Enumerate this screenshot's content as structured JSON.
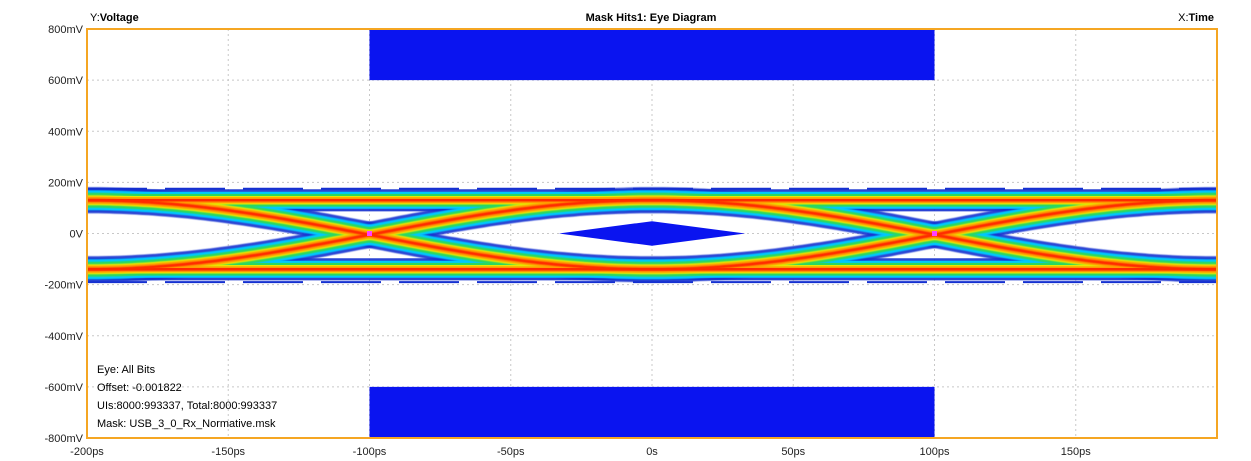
{
  "header": {
    "y_prefix": "Y:",
    "y_name": "Voltage",
    "title": "Mask Hits1: Eye Diagram",
    "x_prefix": "X:",
    "x_name": "Time"
  },
  "info": {
    "eye": "Eye: All Bits",
    "offset": "Offset: -0.001822",
    "uis": "UIs:8000:993337, Total:8000:993337",
    "mask": "Mask: USB_3_0_Rx_Normative.msk"
  },
  "colors": {
    "frame": "#f5a623",
    "grid": "#c8c8c8",
    "mask": "#0a14f0",
    "crossing_marker": "#ff40ff",
    "heat": [
      "#1530d0",
      "#00c8ff",
      "#2ad860",
      "#e8e800",
      "#ff9a00",
      "#ff2a00"
    ]
  },
  "chart_data": {
    "type": "heatmap",
    "title": "Mask Hits1: Eye Diagram",
    "xlabel": "Time",
    "ylabel": "Voltage",
    "x_unit": "ps",
    "y_unit": "mV",
    "xlim": [
      -200,
      200
    ],
    "ylim": [
      -800,
      800
    ],
    "grid": true,
    "x_ticks": [
      {
        "value": -200,
        "label": "-200ps"
      },
      {
        "value": -150,
        "label": "-150ps"
      },
      {
        "value": -100,
        "label": "-100ps"
      },
      {
        "value": -50,
        "label": "-50ps"
      },
      {
        "value": 0,
        "label": "0s"
      },
      {
        "value": 50,
        "label": "50ps"
      },
      {
        "value": 100,
        "label": "100ps"
      },
      {
        "value": 150,
        "label": "150ps"
      }
    ],
    "y_ticks": [
      {
        "value": 800,
        "label": "800mV"
      },
      {
        "value": 600,
        "label": "600mV"
      },
      {
        "value": 400,
        "label": "400mV"
      },
      {
        "value": 200,
        "label": "200mV"
      },
      {
        "value": 0,
        "label": "0V"
      },
      {
        "value": -200,
        "label": "-200mV"
      },
      {
        "value": -400,
        "label": "-400mV"
      },
      {
        "value": -600,
        "label": "-600mV"
      },
      {
        "value": -800,
        "label": "-800mV"
      }
    ],
    "mask_regions": [
      {
        "name": "top",
        "x": [
          -100,
          100
        ],
        "y": [
          600,
          800
        ]
      },
      {
        "name": "bottom",
        "x": [
          -100,
          100
        ],
        "y": [
          -800,
          -600
        ]
      },
      {
        "name": "center",
        "points": [
          [
            -33,
            0
          ],
          [
            0,
            48
          ],
          [
            33,
            0
          ],
          [
            0,
            -48
          ]
        ]
      }
    ],
    "eye": {
      "ui_ps": 200,
      "crossings_ps": [
        -100,
        100
      ],
      "level_high_mV": 130,
      "level_low_mV": -140,
      "outer_high_mV": 175,
      "outer_low_mV": -190,
      "crossing_mV": 0
    }
  }
}
